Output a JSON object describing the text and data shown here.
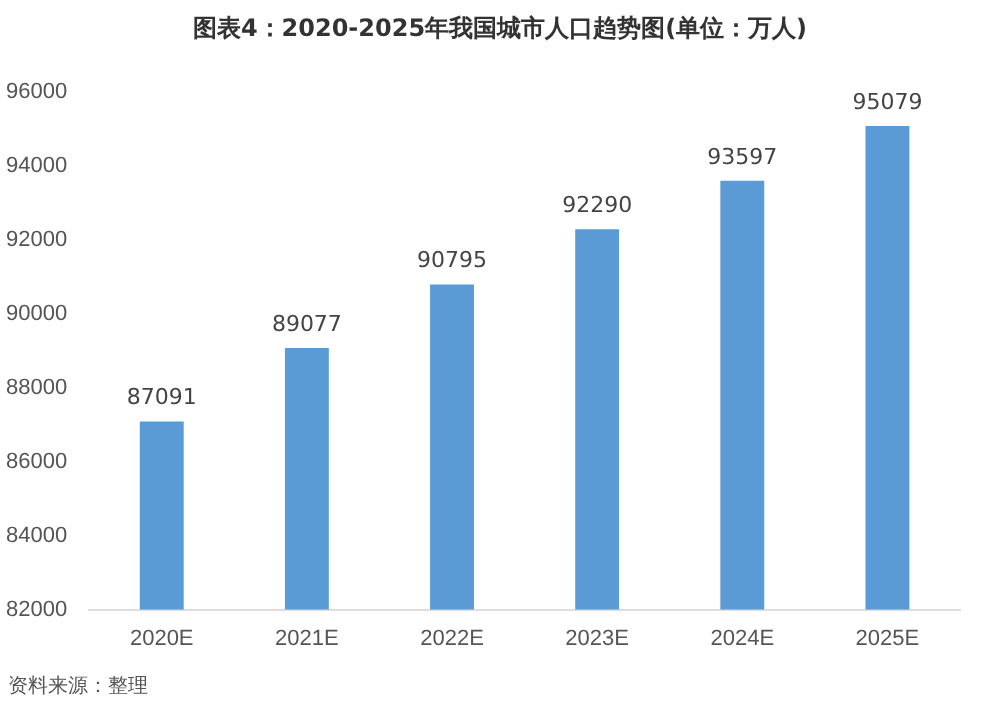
{
  "chart_data": {
    "type": "bar",
    "title": "图表4：2020-2025年我国城市人口趋势图(单位：万人)",
    "categories": [
      "2020E",
      "2021E",
      "2022E",
      "2023E",
      "2024E",
      "2025E"
    ],
    "values": [
      87091,
      89077,
      90795,
      92290,
      93597,
      95079
    ],
    "color": "#5b9bd5",
    "ylim": [
      82000,
      96000
    ],
    "yticks": [
      82000,
      84000,
      86000,
      88000,
      90000,
      92000,
      94000,
      96000
    ],
    "grid": false,
    "legend": false,
    "data_labels": true,
    "annotations": [
      "资料来源：整理"
    ]
  }
}
